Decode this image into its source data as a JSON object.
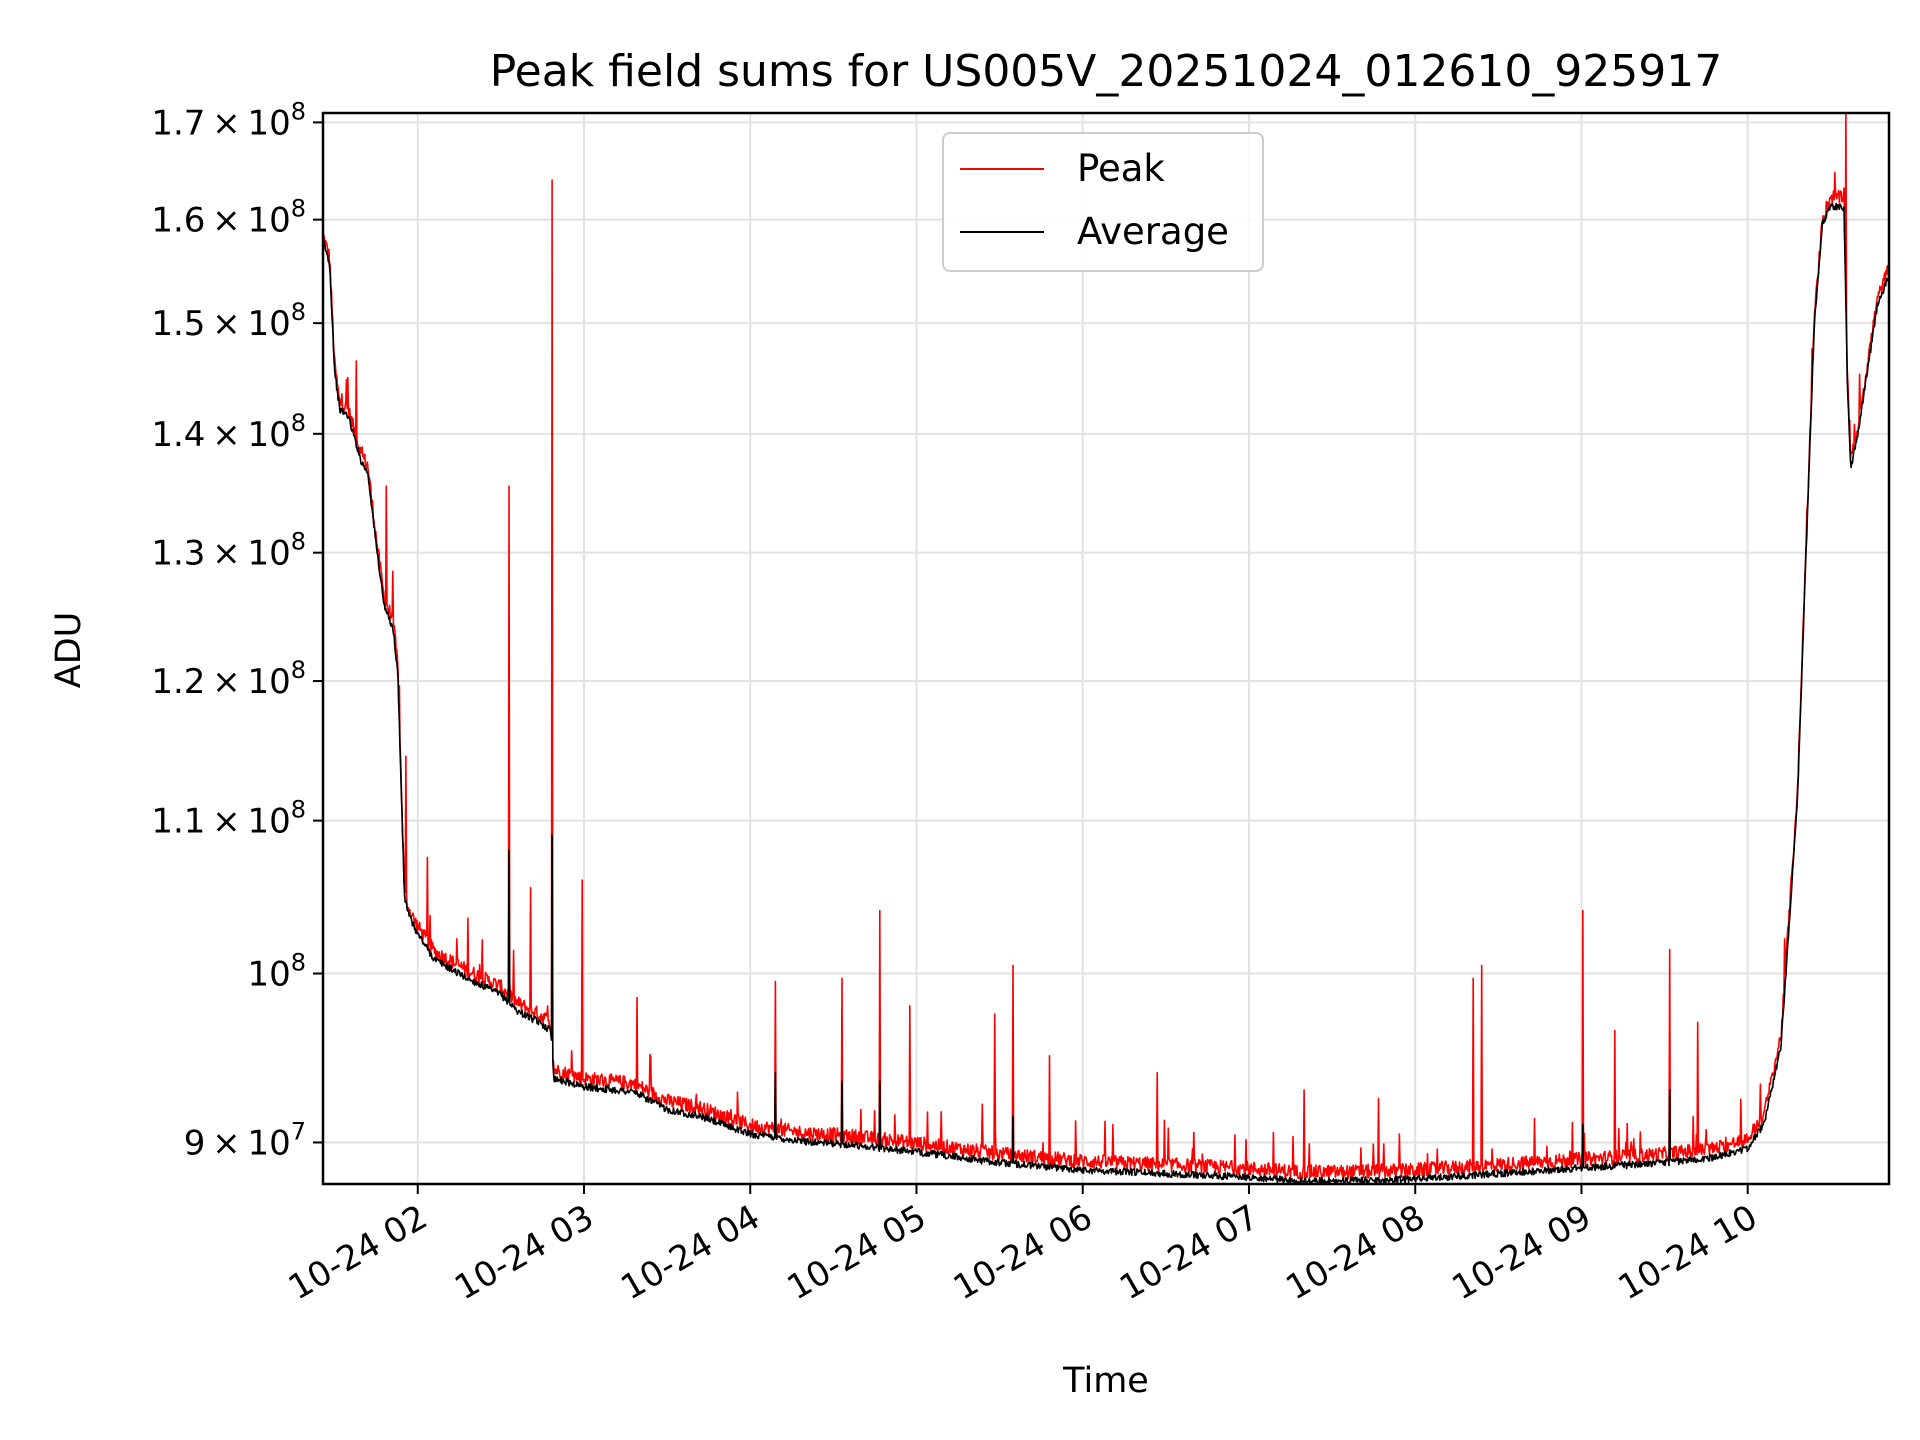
{
  "chart_data": {
    "type": "line",
    "title": "Peak field sums for US005V_20251024_012610_925917",
    "xlabel": "Time",
    "ylabel": "ADU",
    "y_scale": "log",
    "ylim": [
      87700000,
      171000000
    ],
    "xlim": [
      1.43,
      10.85
    ],
    "x_unit": "hours of 2025-10-24",
    "x_ticks": [
      {
        "value": 2,
        "label": "10-24 02"
      },
      {
        "value": 3,
        "label": "10-24 03"
      },
      {
        "value": 4,
        "label": "10-24 04"
      },
      {
        "value": 5,
        "label": "10-24 05"
      },
      {
        "value": 6,
        "label": "10-24 06"
      },
      {
        "value": 7,
        "label": "10-24 07"
      },
      {
        "value": 8,
        "label": "10-24 08"
      },
      {
        "value": 9,
        "label": "10-24 09"
      },
      {
        "value": 10,
        "label": "10-24 10"
      }
    ],
    "y_ticks": [
      {
        "value": 90000000,
        "mantissa": "9",
        "exponent": "7"
      },
      {
        "value": 100000000,
        "mantissa": "",
        "exponent": "8"
      },
      {
        "value": 110000000,
        "mantissa": "1.1",
        "exponent": "8"
      },
      {
        "value": 120000000,
        "mantissa": "1.2",
        "exponent": "8"
      },
      {
        "value": 130000000,
        "mantissa": "1.3",
        "exponent": "8"
      },
      {
        "value": 140000000,
        "mantissa": "1.4",
        "exponent": "8"
      },
      {
        "value": 150000000,
        "mantissa": "1.5",
        "exponent": "8"
      },
      {
        "value": 160000000,
        "mantissa": "1.6",
        "exponent": "8"
      },
      {
        "value": 170000000,
        "mantissa": "1.7",
        "exponent": "8"
      }
    ],
    "times_symbol": "×",
    "grid": true,
    "legend_position": "top-center",
    "series": [
      {
        "name": "Peak",
        "color": "#ff0000",
        "baseline": [
          [
            1.43,
            158200000
          ],
          [
            1.47,
            156000000
          ],
          [
            1.5,
            146000000
          ],
          [
            1.53,
            142500000
          ],
          [
            1.58,
            142000000
          ],
          [
            1.62,
            140000000
          ],
          [
            1.66,
            138000000
          ],
          [
            1.7,
            137000000
          ],
          [
            1.75,
            131000000
          ],
          [
            1.8,
            126000000
          ],
          [
            1.85,
            124500000
          ],
          [
            1.88,
            121000000
          ],
          [
            1.92,
            105000000
          ],
          [
            1.95,
            103800000
          ],
          [
            2.0,
            102800000
          ],
          [
            2.1,
            101200000
          ],
          [
            2.3,
            100000000
          ],
          [
            2.5,
            99000000
          ],
          [
            2.6,
            98000000
          ],
          [
            2.75,
            97200000
          ],
          [
            2.8,
            96800000
          ],
          [
            2.82,
            94000000
          ],
          [
            3.0,
            93500000
          ],
          [
            3.3,
            93200000
          ],
          [
            3.5,
            92200000
          ],
          [
            3.7,
            91800000
          ],
          [
            4.0,
            90800000
          ],
          [
            4.3,
            90400000
          ],
          [
            4.6,
            90200000
          ],
          [
            5.0,
            89800000
          ],
          [
            5.5,
            89200000
          ],
          [
            6.0,
            88800000
          ],
          [
            6.5,
            88600000
          ],
          [
            7.0,
            88400000
          ],
          [
            7.3,
            88200000
          ],
          [
            7.6,
            88200000
          ],
          [
            8.0,
            88300000
          ],
          [
            8.5,
            88600000
          ],
          [
            9.0,
            88900000
          ],
          [
            9.5,
            89200000
          ],
          [
            9.8,
            89500000
          ],
          [
            10.0,
            90000000
          ],
          [
            10.1,
            91500000
          ],
          [
            10.2,
            96000000
          ],
          [
            10.3,
            112000000
          ],
          [
            10.35,
            130000000
          ],
          [
            10.4,
            150000000
          ],
          [
            10.45,
            160000000
          ],
          [
            10.5,
            162000000
          ],
          [
            10.55,
            162000000
          ],
          [
            10.58,
            161500000
          ],
          [
            10.6,
            145000000
          ],
          [
            10.62,
            137500000
          ],
          [
            10.66,
            140000000
          ],
          [
            10.72,
            146000000
          ],
          [
            10.78,
            152000000
          ],
          [
            10.85,
            155000000
          ]
        ],
        "spikes": [
          [
            1.58,
            145000000
          ],
          [
            1.63,
            146500000
          ],
          [
            1.81,
            135500000
          ],
          [
            1.85,
            128500000
          ],
          [
            1.93,
            114500000
          ],
          [
            2.06,
            107500000
          ],
          [
            2.3,
            103500000
          ],
          [
            2.55,
            135500000
          ],
          [
            2.68,
            105500000
          ],
          [
            2.81,
            164000000
          ],
          [
            2.99,
            106000000
          ],
          [
            3.32,
            98500000
          ],
          [
            4.15,
            99500000
          ],
          [
            4.55,
            99700000
          ],
          [
            4.78,
            104000000
          ],
          [
            4.96,
            98000000
          ],
          [
            5.47,
            97500000
          ],
          [
            5.58,
            100500000
          ],
          [
            5.8,
            95000000
          ],
          [
            6.45,
            94000000
          ],
          [
            7.33,
            93000000
          ],
          [
            7.78,
            92500000
          ],
          [
            8.35,
            99700000
          ],
          [
            8.4,
            100500000
          ],
          [
            9.01,
            104000000
          ],
          [
            9.2,
            96500000
          ],
          [
            9.53,
            101500000
          ],
          [
            9.7,
            97000000
          ],
          [
            10.59,
            171000000
          ]
        ]
      },
      {
        "name": "Average",
        "color": "#000000",
        "baseline": [
          [
            1.43,
            157800000
          ],
          [
            1.47,
            155500000
          ],
          [
            1.5,
            145500000
          ],
          [
            1.53,
            142000000
          ],
          [
            1.58,
            141500000
          ],
          [
            1.62,
            139500000
          ],
          [
            1.66,
            137500000
          ],
          [
            1.7,
            136500000
          ],
          [
            1.75,
            130500000
          ],
          [
            1.8,
            125500000
          ],
          [
            1.85,
            124000000
          ],
          [
            1.88,
            120500000
          ],
          [
            1.92,
            104800000
          ],
          [
            1.95,
            103500000
          ],
          [
            2.0,
            102400000
          ],
          [
            2.1,
            100800000
          ],
          [
            2.3,
            99600000
          ],
          [
            2.5,
            98600000
          ],
          [
            2.6,
            97600000
          ],
          [
            2.75,
            96800000
          ],
          [
            2.8,
            96400000
          ],
          [
            2.82,
            93600000
          ],
          [
            3.0,
            93100000
          ],
          [
            3.3,
            92800000
          ],
          [
            3.5,
            91800000
          ],
          [
            3.7,
            91400000
          ],
          [
            4.0,
            90400000
          ],
          [
            4.3,
            90000000
          ],
          [
            4.6,
            89800000
          ],
          [
            5.0,
            89400000
          ],
          [
            5.5,
            88800000
          ],
          [
            6.0,
            88400000
          ],
          [
            6.5,
            88200000
          ],
          [
            7.0,
            88000000
          ],
          [
            7.3,
            87800000
          ],
          [
            7.6,
            87800000
          ],
          [
            8.0,
            87900000
          ],
          [
            8.5,
            88200000
          ],
          [
            9.0,
            88500000
          ],
          [
            9.5,
            88800000
          ],
          [
            9.8,
            89100000
          ],
          [
            10.0,
            89600000
          ],
          [
            10.1,
            91000000
          ],
          [
            10.2,
            95500000
          ],
          [
            10.3,
            111500000
          ],
          [
            10.35,
            129500000
          ],
          [
            10.4,
            149500000
          ],
          [
            10.45,
            159500000
          ],
          [
            10.5,
            161200000
          ],
          [
            10.55,
            161200000
          ],
          [
            10.58,
            160800000
          ],
          [
            10.6,
            144000000
          ],
          [
            10.62,
            137000000
          ],
          [
            10.66,
            139500000
          ],
          [
            10.72,
            145500000
          ],
          [
            10.78,
            151500000
          ],
          [
            10.85,
            154500000
          ]
        ],
        "spikes": [
          [
            2.55,
            108000000
          ],
          [
            2.81,
            109000000
          ],
          [
            4.15,
            94000000
          ],
          [
            4.55,
            93500000
          ],
          [
            4.78,
            93500000
          ],
          [
            5.58,
            91500000
          ],
          [
            9.01,
            91000000
          ],
          [
            9.53,
            93000000
          ]
        ]
      }
    ]
  }
}
